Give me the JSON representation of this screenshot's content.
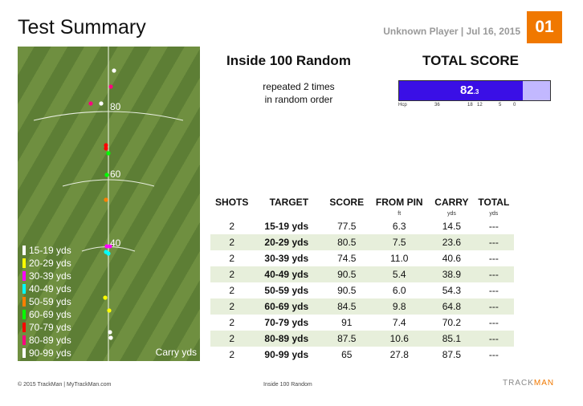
{
  "header": {
    "title": "Test Summary",
    "player_line": "Unknown Player | Jul 16, 2015",
    "page_number": "01"
  },
  "range": {
    "distance_labels": [
      "80",
      "60",
      "40"
    ],
    "carry_label": "Carry yds",
    "legend": [
      {
        "label": "15-19 yds",
        "color": "#ffffff"
      },
      {
        "label": "20-29 yds",
        "color": "#ffff00"
      },
      {
        "label": "30-39 yds",
        "color": "#ff00ff"
      },
      {
        "label": "40-49 yds",
        "color": "#00ffff"
      },
      {
        "label": "50-59 yds",
        "color": "#ff7f00"
      },
      {
        "label": "60-69 yds",
        "color": "#00ff00"
      },
      {
        "label": "70-79 yds",
        "color": "#ff0000"
      },
      {
        "label": "80-89 yds",
        "color": "#ff0080"
      },
      {
        "label": "90-99 yds",
        "color": "#ffffff"
      }
    ]
  },
  "drill": {
    "name": "Inside 100 Random",
    "description_line1": "repeated 2 times",
    "description_line2": "in random order"
  },
  "total_score": {
    "title": "TOTAL SCORE",
    "value": "82",
    "value_sub": ".3",
    "fill_fraction": 0.82,
    "hcp_label": "Hcp",
    "hcp_ticks": [
      "36",
      "18",
      "12",
      "5",
      "0"
    ],
    "fill_color": "#3a0fe6",
    "bg_color": "#c2b8ff"
  },
  "table": {
    "headers": [
      "SHOTS",
      "TARGET",
      "SCORE",
      "FROM PIN",
      "CARRY",
      "TOTAL"
    ],
    "units": [
      "",
      "",
      "",
      "ft",
      "yds",
      "yds"
    ],
    "rows": [
      {
        "shots": "2",
        "target": "15-19",
        "score": "77.5",
        "from_pin": "6.3",
        "carry": "14.5",
        "total": "---"
      },
      {
        "shots": "2",
        "target": "20-29",
        "score": "80.5",
        "from_pin": "7.5",
        "carry": "23.6",
        "total": "---"
      },
      {
        "shots": "2",
        "target": "30-39",
        "score": "74.5",
        "from_pin": "11.0",
        "carry": "40.6",
        "total": "---"
      },
      {
        "shots": "2",
        "target": "40-49",
        "score": "90.5",
        "from_pin": "5.4",
        "carry": "38.9",
        "total": "---"
      },
      {
        "shots": "2",
        "target": "50-59",
        "score": "90.5",
        "from_pin": "6.0",
        "carry": "54.3",
        "total": "---"
      },
      {
        "shots": "2",
        "target": "60-69",
        "score": "84.5",
        "from_pin": "9.8",
        "carry": "64.8",
        "total": "---"
      },
      {
        "shots": "2",
        "target": "70-79",
        "score": "91",
        "from_pin": "7.4",
        "carry": "70.2",
        "total": "---"
      },
      {
        "shots": "2",
        "target": "80-89",
        "score": "87.5",
        "from_pin": "10.6",
        "carry": "85.1",
        "total": "---"
      },
      {
        "shots": "2",
        "target": "90-99",
        "score": "65",
        "from_pin": "27.8",
        "carry": "87.5",
        "total": "---"
      }
    ],
    "target_unit": "yds"
  },
  "footer": {
    "copyright": "© 2015 TrackMan | MyTrackMan.com",
    "drill_name": "Inside 100 Random",
    "brand_left": "TRACK",
    "brand_right": "MAN"
  }
}
